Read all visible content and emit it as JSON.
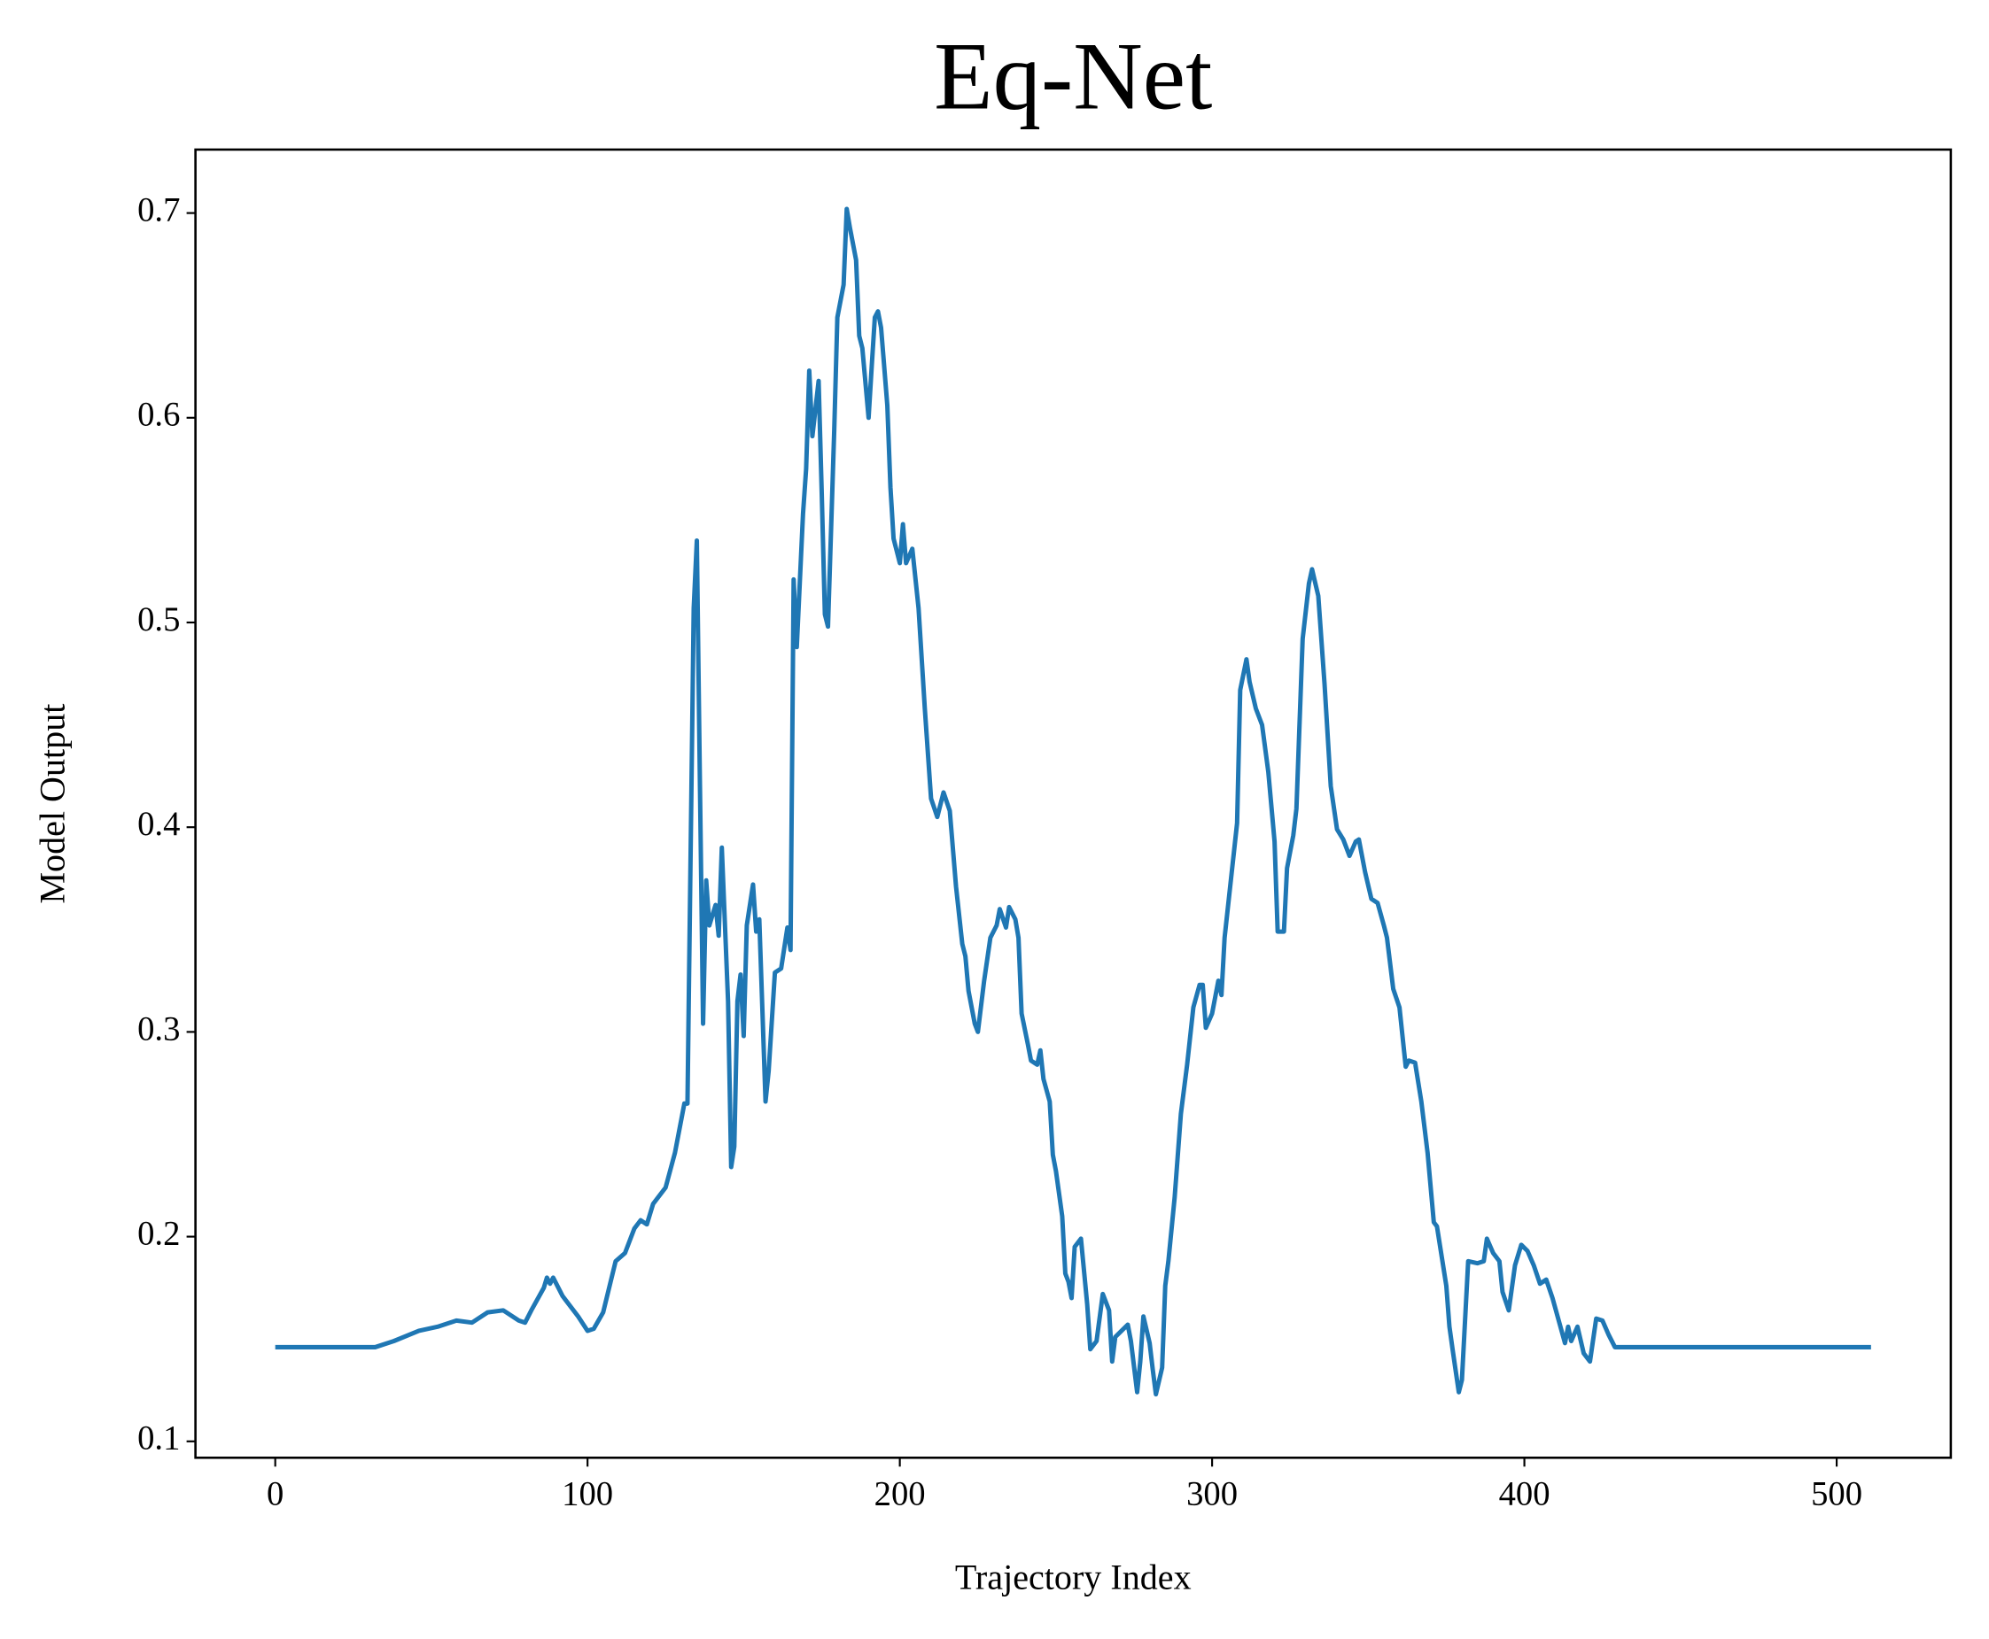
{
  "chart_data": {
    "type": "line",
    "title": "Eq-Net",
    "x_label": "Trajectory Index",
    "y_label": "Model Output",
    "xlim": [
      -25.55,
      536.55
    ],
    "ylim": [
      0.092,
      0.731
    ],
    "xticks": [
      0,
      100,
      200,
      300,
      400,
      500
    ],
    "yticks": [
      0.1,
      0.2,
      0.3,
      0.4,
      0.5,
      0.6,
      0.7
    ],
    "series": [
      {
        "color": "#1f77b4",
        "x": [
          0,
          32,
          38,
          46,
          52,
          58,
          63,
          68,
          73,
          78,
          80,
          82,
          86,
          87,
          88,
          89,
          92,
          97,
          100,
          102,
          105,
          109,
          112,
          115,
          117,
          119,
          121,
          125,
          128,
          131,
          132,
          134,
          135,
          136,
          137,
          138,
          139,
          141,
          142,
          143,
          145,
          146,
          147,
          148,
          149,
          150,
          151,
          153,
          154,
          155,
          157,
          158,
          160,
          162,
          164,
          165,
          166,
          167,
          169,
          170,
          171,
          172,
          174,
          175,
          176,
          177,
          179,
          180,
          182,
          183,
          184,
          186,
          187,
          188,
          190,
          191,
          192,
          193,
          194,
          196,
          197,
          198,
          199,
          200,
          201,
          202,
          204,
          206,
          208,
          210,
          212,
          214,
          216,
          218,
          220,
          221,
          222,
          224,
          225,
          227,
          229,
          231,
          232,
          234,
          235,
          237,
          238,
          239,
          241,
          242,
          244,
          245,
          246,
          248,
          249,
          250,
          252,
          253,
          254,
          255,
          256,
          258,
          260,
          261,
          263,
          265,
          267,
          268,
          269,
          271,
          273,
          274,
          276,
          277,
          278,
          280,
          281,
          282,
          284,
          285,
          286,
          288,
          290,
          292,
          294,
          296,
          297,
          298,
          300,
          302,
          303,
          304,
          306,
          308,
          309,
          311,
          312,
          314,
          316,
          318,
          320,
          321,
          323,
          324,
          326,
          327,
          329,
          331,
          332,
          334,
          336,
          338,
          340,
          342,
          344,
          346,
          347,
          349,
          351,
          353,
          355,
          356,
          358,
          360,
          362,
          363,
          365,
          367,
          369,
          371,
          372,
          375,
          376,
          377,
          379,
          380,
          382,
          385,
          387,
          388,
          390,
          392,
          393,
          395,
          397,
          399,
          401,
          403,
          405,
          407,
          409,
          411,
          413,
          414,
          415,
          417,
          419,
          421,
          423,
          425,
          427,
          429,
          511
        ],
        "values": [
          0.146,
          0.146,
          0.149,
          0.154,
          0.156,
          0.159,
          0.158,
          0.163,
          0.164,
          0.159,
          0.158,
          0.164,
          0.175,
          0.18,
          0.177,
          0.18,
          0.171,
          0.161,
          0.154,
          0.155,
          0.163,
          0.188,
          0.192,
          0.204,
          0.208,
          0.206,
          0.216,
          0.224,
          0.241,
          0.265,
          0.265,
          0.507,
          0.54,
          0.42,
          0.304,
          0.374,
          0.352,
          0.362,
          0.347,
          0.39,
          0.315,
          0.234,
          0.244,
          0.315,
          0.328,
          0.298,
          0.352,
          0.372,
          0.349,
          0.355,
          0.266,
          0.281,
          0.329,
          0.331,
          0.351,
          0.34,
          0.521,
          0.488,
          0.553,
          0.575,
          0.623,
          0.591,
          0.618,
          0.563,
          0.504,
          0.498,
          0.594,
          0.649,
          0.665,
          0.702,
          0.693,
          0.677,
          0.64,
          0.634,
          0.6,
          0.625,
          0.649,
          0.652,
          0.644,
          0.606,
          0.566,
          0.541,
          0.535,
          0.529,
          0.548,
          0.529,
          0.536,
          0.507,
          0.458,
          0.414,
          0.405,
          0.417,
          0.408,
          0.371,
          0.343,
          0.337,
          0.32,
          0.304,
          0.3,
          0.325,
          0.346,
          0.352,
          0.36,
          0.351,
          0.361,
          0.355,
          0.346,
          0.309,
          0.294,
          0.286,
          0.284,
          0.291,
          0.277,
          0.266,
          0.24,
          0.232,
          0.21,
          0.182,
          0.178,
          0.17,
          0.195,
          0.199,
          0.167,
          0.145,
          0.149,
          0.172,
          0.164,
          0.139,
          0.151,
          0.154,
          0.157,
          0.149,
          0.124,
          0.139,
          0.161,
          0.148,
          0.135,
          0.123,
          0.136,
          0.176,
          0.188,
          0.219,
          0.26,
          0.284,
          0.312,
          0.323,
          0.323,
          0.302,
          0.309,
          0.325,
          0.318,
          0.346,
          0.374,
          0.402,
          0.467,
          0.482,
          0.471,
          0.458,
          0.45,
          0.427,
          0.393,
          0.349,
          0.349,
          0.38,
          0.396,
          0.409,
          0.492,
          0.519,
          0.526,
          0.513,
          0.47,
          0.42,
          0.399,
          0.394,
          0.386,
          0.393,
          0.394,
          0.378,
          0.365,
          0.363,
          0.352,
          0.346,
          0.321,
          0.312,
          0.283,
          0.286,
          0.285,
          0.266,
          0.241,
          0.207,
          0.205,
          0.176,
          0.156,
          0.145,
          0.124,
          0.13,
          0.188,
          0.187,
          0.188,
          0.199,
          0.192,
          0.188,
          0.173,
          0.164,
          0.186,
          0.196,
          0.193,
          0.186,
          0.177,
          0.179,
          0.17,
          0.159,
          0.148,
          0.156,
          0.149,
          0.156,
          0.143,
          0.139,
          0.16,
          0.159,
          0.152,
          0.146,
          0.146
        ]
      }
    ]
  }
}
